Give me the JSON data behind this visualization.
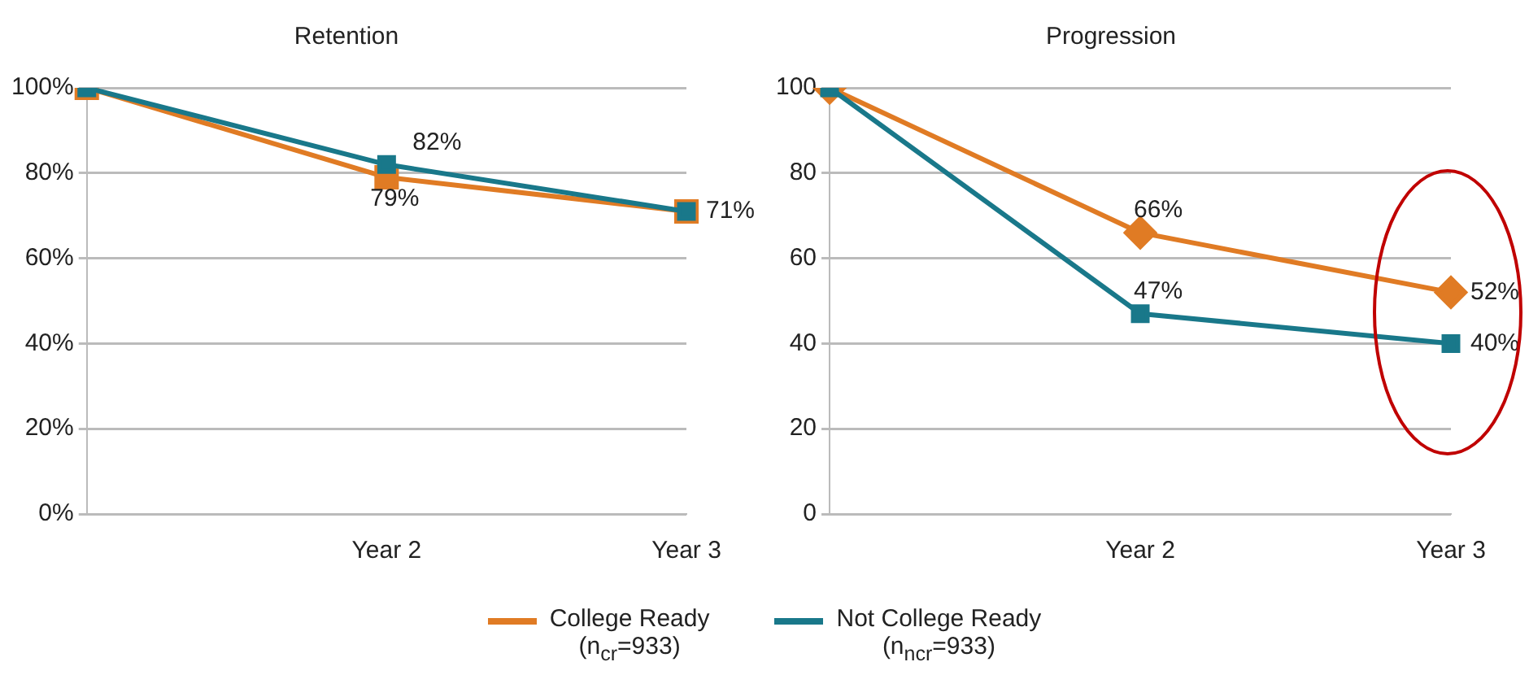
{
  "chart_data": [
    {
      "type": "line",
      "title": "Retention",
      "categories": [
        null,
        "Year 2",
        "Year 3"
      ],
      "ylim": [
        0,
        100
      ],
      "yticks": [
        {
          "value": 0,
          "label": "0%"
        },
        {
          "value": 20,
          "label": "20%"
        },
        {
          "value": 40,
          "label": "40%"
        },
        {
          "value": 60,
          "label": "60%"
        },
        {
          "value": 80,
          "label": "80%"
        },
        {
          "value": 100,
          "label": "100%"
        }
      ],
      "grid": "y",
      "legend": "bottom",
      "line_style": "solid",
      "series": [
        {
          "name": "College Ready\n(n$_{cr}$=933)",
          "color": "#e07b24",
          "marker": "square",
          "values": [
            100,
            79,
            71
          ],
          "value_labels": [
            null,
            "79%",
            null
          ]
        },
        {
          "name": "Not College Ready\n(n$_{ncr}$=933)",
          "color": "#19788a",
          "marker": "square",
          "values": [
            100,
            82,
            71
          ],
          "value_labels": [
            null,
            "82%",
            "71%"
          ]
        }
      ]
    },
    {
      "type": "line",
      "title": "Progression",
      "categories": [
        null,
        "Year 2",
        "Year 3"
      ],
      "ylim": [
        0,
        100
      ],
      "yticks": [
        0,
        20,
        40,
        60,
        80,
        100
      ],
      "grid": "y",
      "line_style": "solid",
      "series": [
        {
          "color": "#e07b24",
          "marker": "diamond",
          "values": [
            100,
            66,
            52
          ],
          "value_labels": [
            null,
            "66%",
            "52%"
          ]
        },
        {
          "color": "#19788a",
          "marker": "square",
          "values": [
            100,
            47,
            40
          ],
          "value_labels": [
            null,
            "47%",
            "40%"
          ]
        }
      ]
    }
  ]
}
